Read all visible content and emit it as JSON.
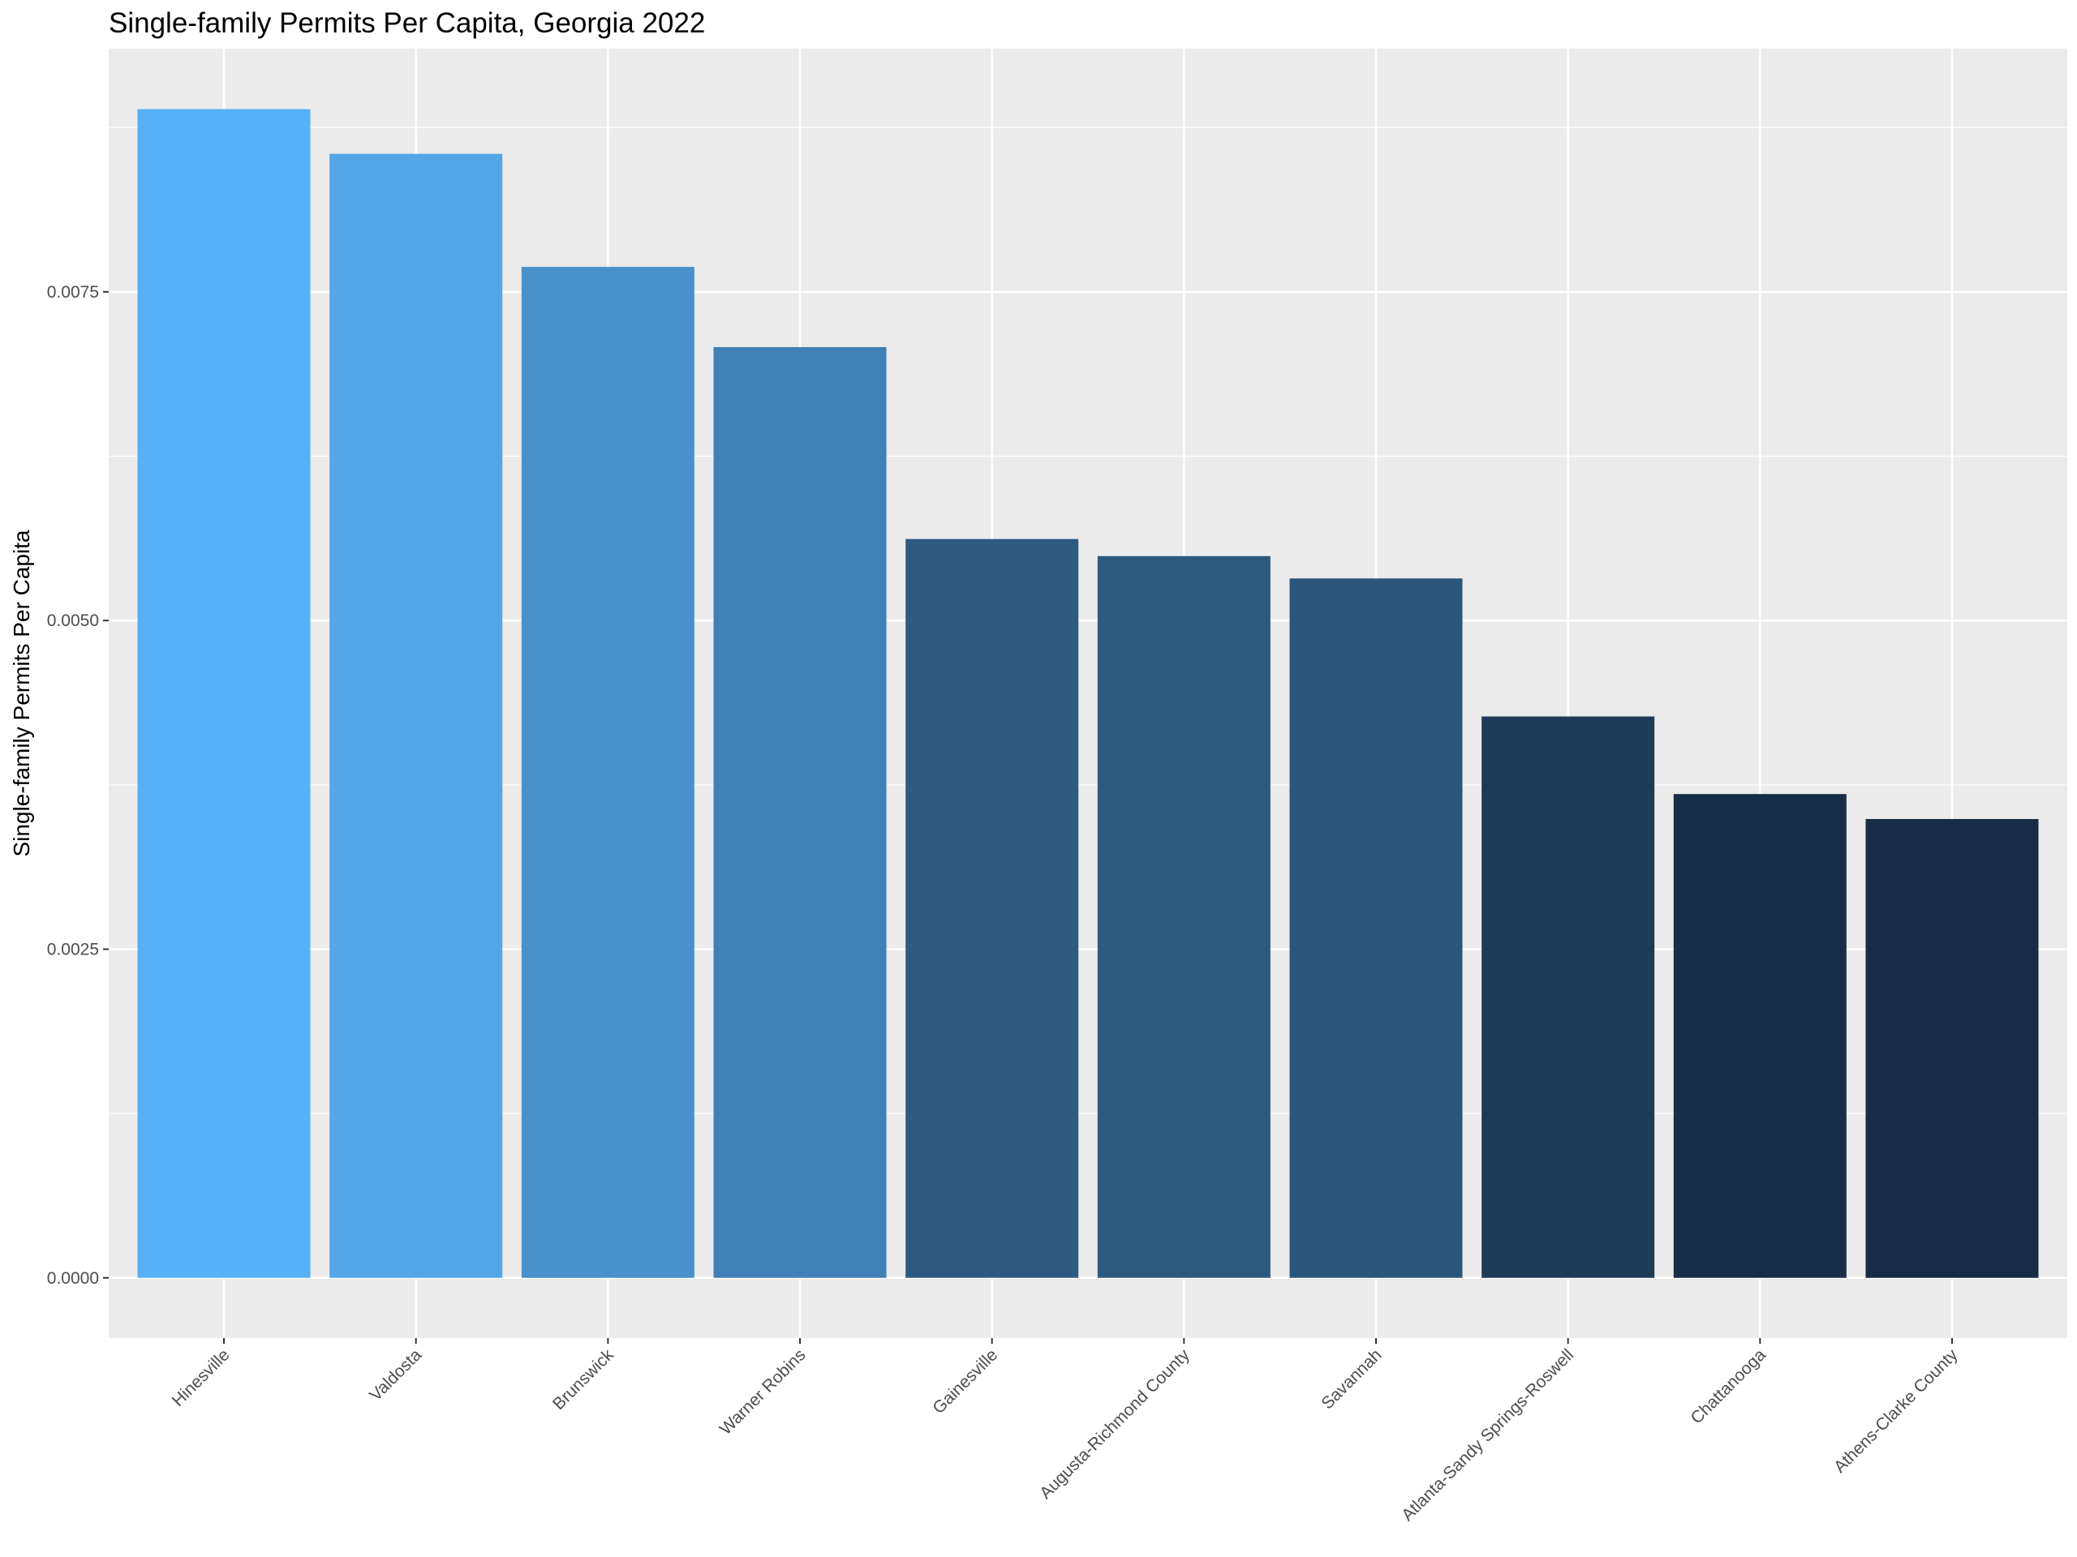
{
  "chart_data": {
    "type": "bar",
    "title": "Single-family Permits Per Capita, Georgia 2022",
    "xlabel": "",
    "ylabel": "Single-family Permits Per Capita",
    "categories": [
      "Hinesville",
      "Valdosta",
      "Brunswick",
      "Warner Robins",
      "Gainesville",
      "Augusta-Richmond County",
      "Savannah",
      "Atlanta-Sandy Springs-Roswell",
      "Chattanooga",
      "Athens-Clarke County"
    ],
    "values": [
      0.00889,
      0.00855,
      0.00769,
      0.00708,
      0.00562,
      0.00549,
      0.00532,
      0.00427,
      0.00368,
      0.00349
    ],
    "colors": [
      "#56b1f7",
      "#53a6e8",
      "#4891cc",
      "#3f80b6",
      "#2e5a82",
      "#2c597f",
      "#2a567c",
      "#1e3a56",
      "#172e47",
      "#172b44"
    ],
    "ylim": [
      -0.000458,
      0.00935
    ],
    "yticks": [
      0,
      0.0025,
      0.005,
      0.0075
    ],
    "ytick_labels": [
      "0.0000",
      "0.0025",
      "0.0050",
      "0.0075"
    ],
    "grid": true,
    "legend": "none",
    "panel_background": "#ebebeb",
    "grid_color": "#ffffff"
  }
}
